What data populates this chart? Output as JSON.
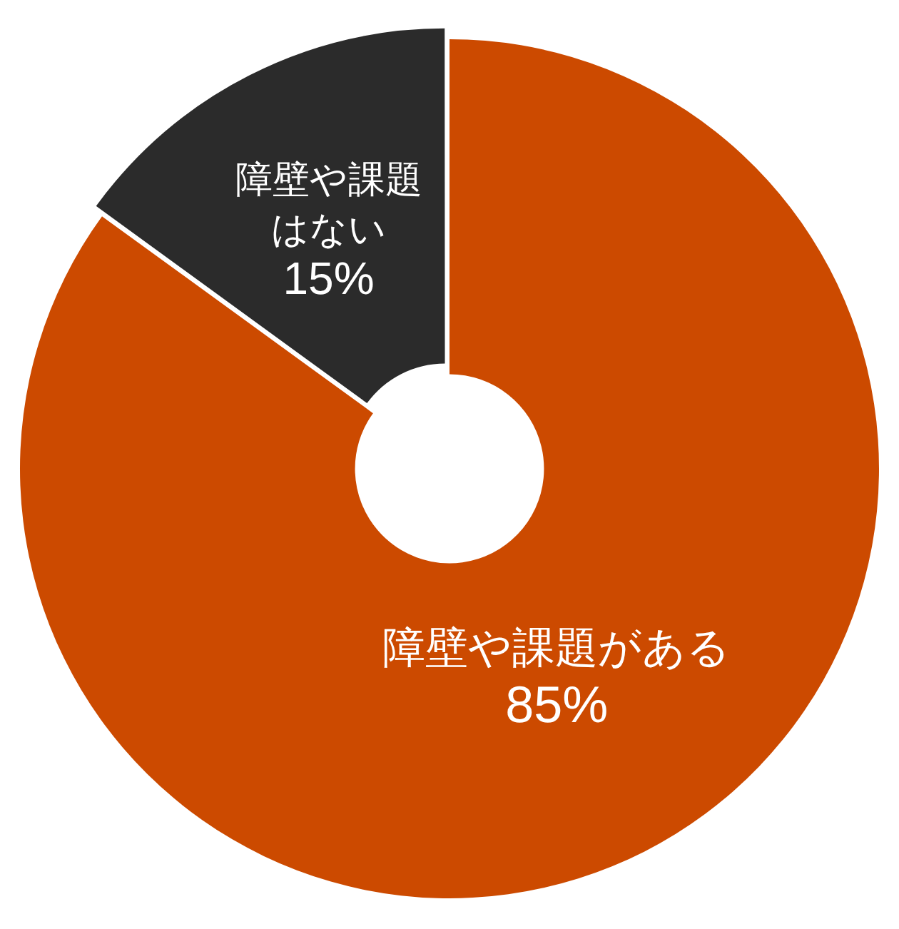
{
  "chart_data": {
    "type": "donut",
    "categories": [
      "障壁や課題がある",
      "障壁や課題はない"
    ],
    "values": [
      85,
      15
    ],
    "colors": [
      "#cc4a00",
      "#2b2b2b"
    ],
    "value_labels": [
      "85%",
      "15%"
    ],
    "legend": false
  }
}
